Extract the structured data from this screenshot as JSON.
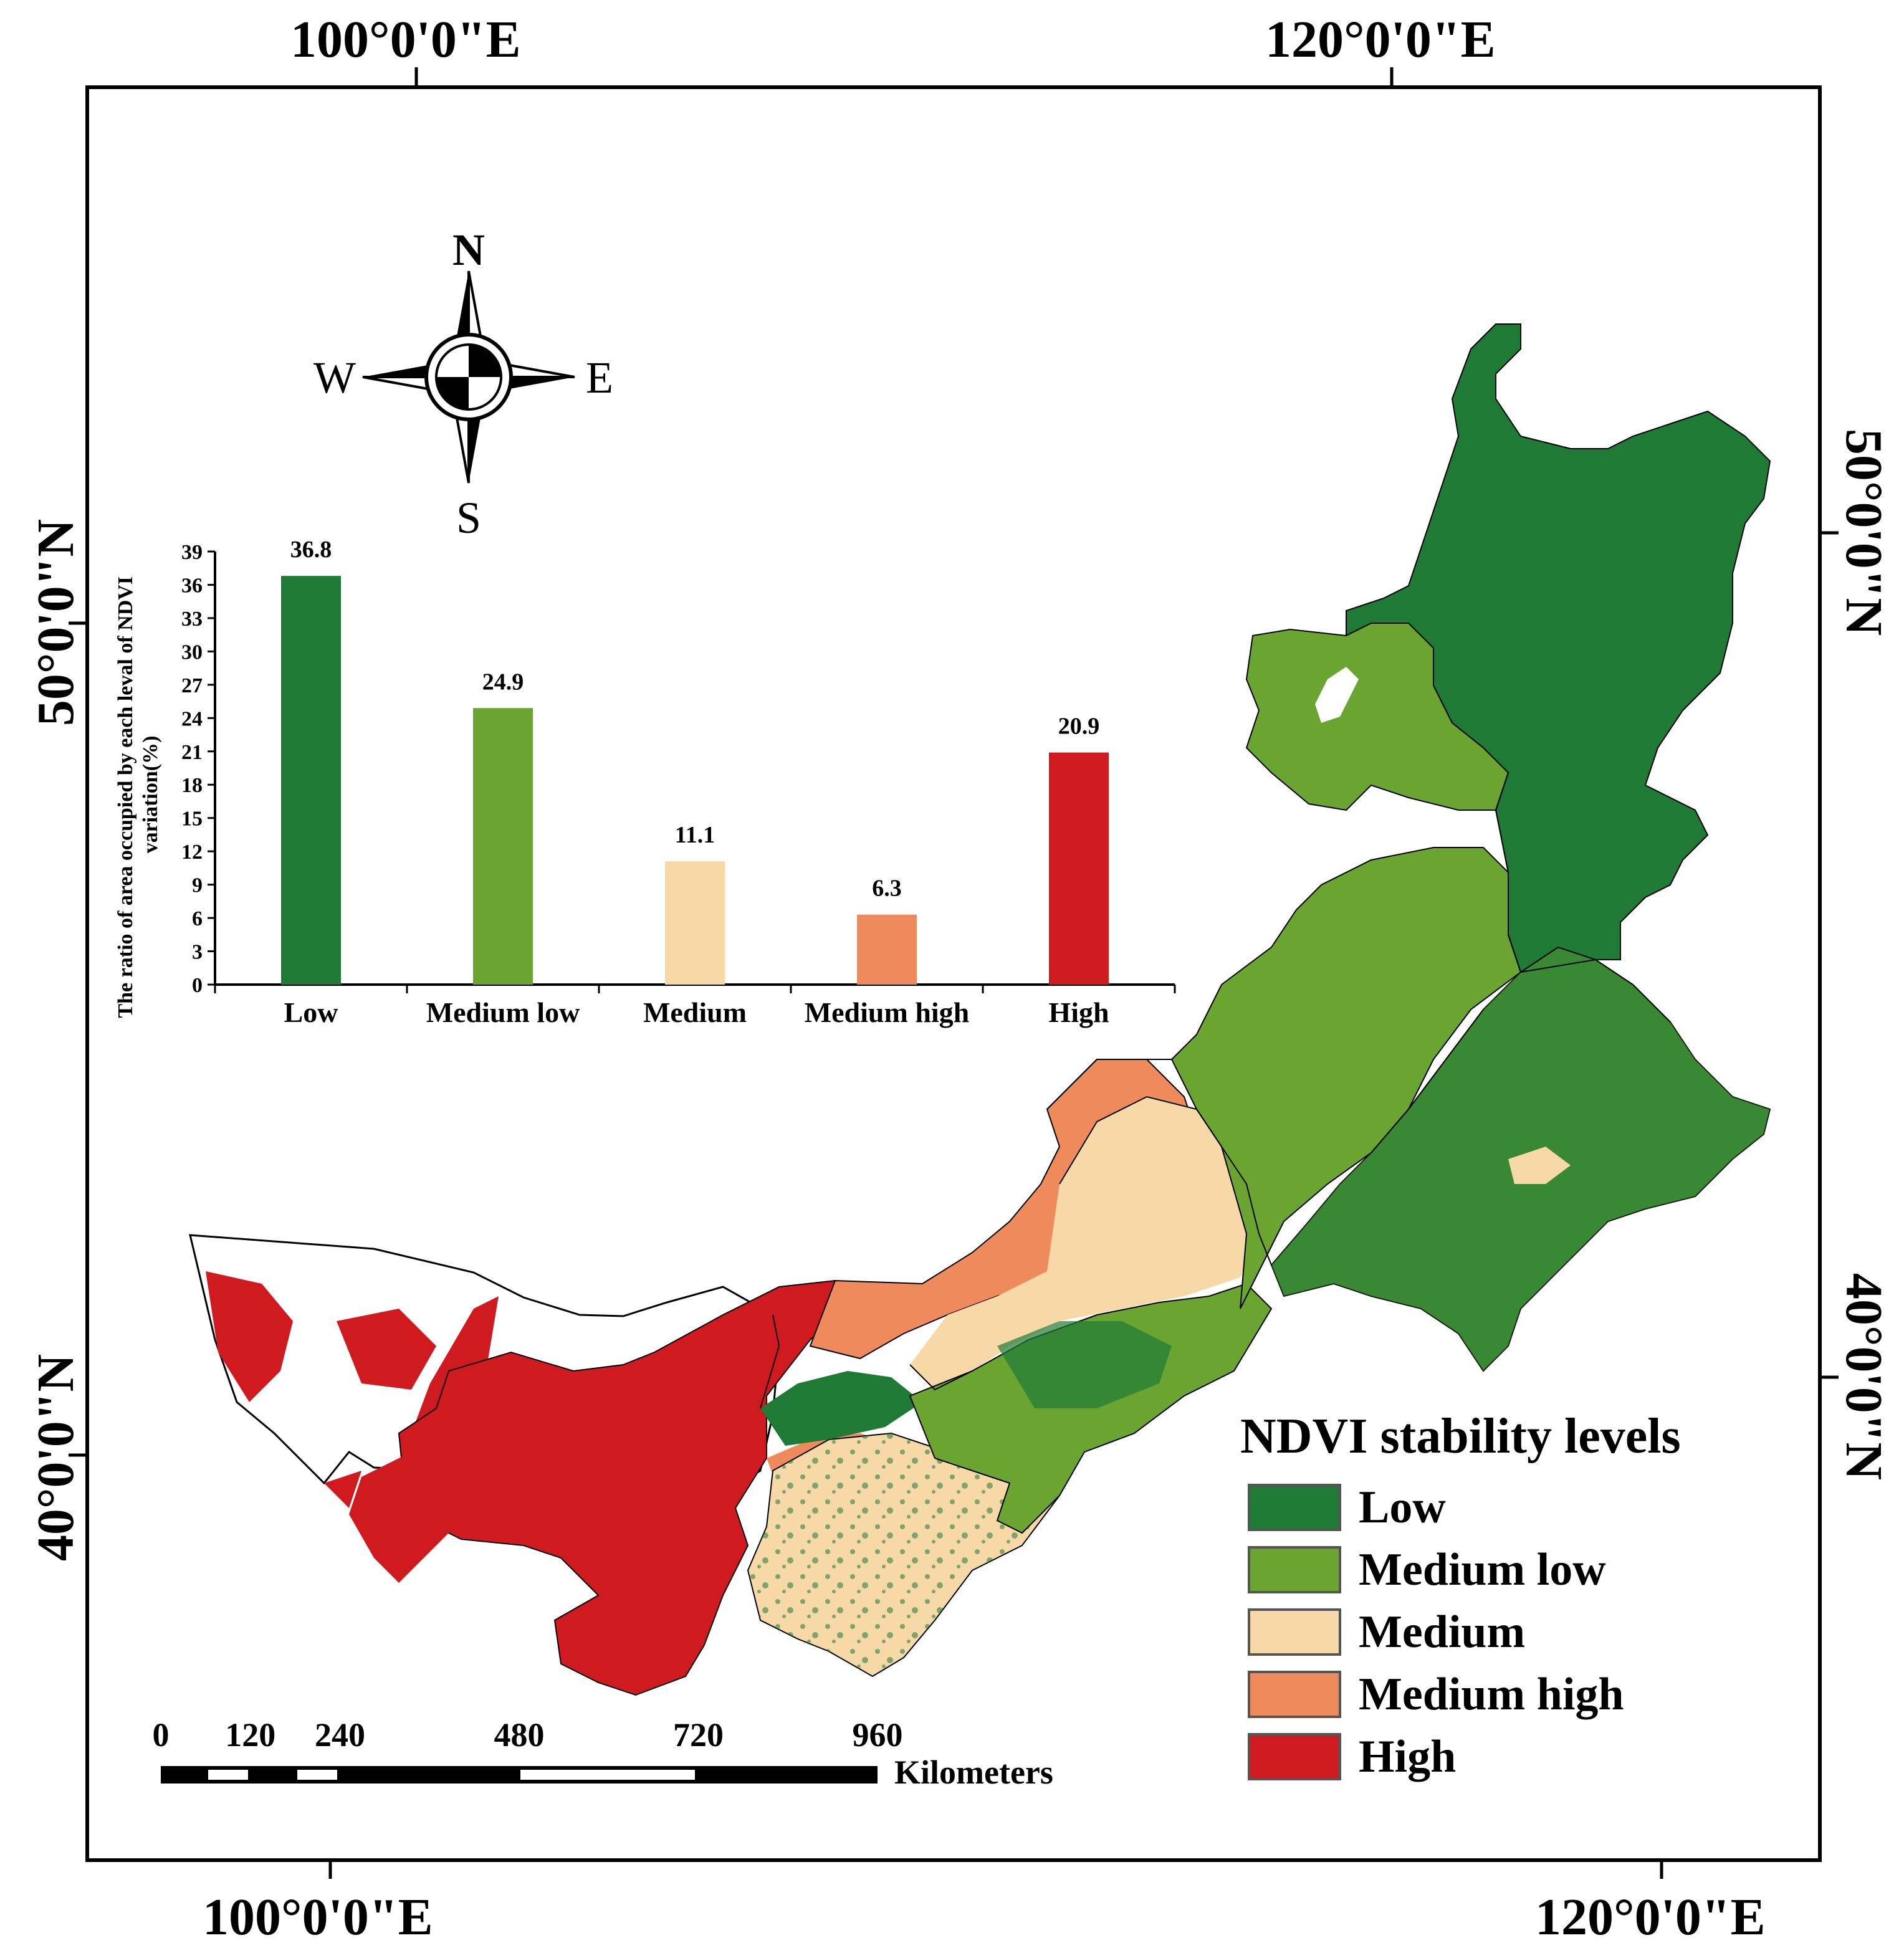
{
  "graticule": {
    "top_labels": [
      "100°0'0\"E",
      "120°0'0\"E"
    ],
    "bottom_labels": [
      "100°0'0\"E",
      "120°0'0\"E"
    ],
    "left_labels": [
      "50°0'0\"N",
      "40°0'0\"N"
    ],
    "right_labels": [
      "50°0'0\"N",
      "40°0'0\"N"
    ]
  },
  "north_arrow": {
    "n": "N",
    "s": "S",
    "e": "E",
    "w": "W"
  },
  "legend": {
    "title": "NDVI stability levels",
    "items": [
      {
        "label": "Low",
        "color": "#1f7a36"
      },
      {
        "label": "Medium low",
        "color": "#6aa532"
      },
      {
        "label": "Medium",
        "color": "#f7d8a7"
      },
      {
        "label": "Medium high",
        "color": "#ef8a5c"
      },
      {
        "label": "High",
        "color": "#cf1b20"
      }
    ]
  },
  "scale_bar": {
    "ticks": [
      "0",
      "120",
      "240",
      "480",
      "720",
      "960"
    ],
    "tick_values": [
      0,
      120,
      240,
      480,
      720,
      960
    ],
    "unit": "Kilometers"
  },
  "chart_data": {
    "type": "bar",
    "title": "",
    "categories": [
      "Low",
      "Medium low",
      "Medium",
      "Medium high",
      "High"
    ],
    "values": [
      36.8,
      24.9,
      11.1,
      6.3,
      20.9
    ],
    "value_labels": [
      "36.8",
      "24.9",
      "11.1",
      "6.3",
      "20.9"
    ],
    "colors": [
      "#1f7a36",
      "#6aa532",
      "#f7d8a7",
      "#ef8a5c",
      "#cf1b20"
    ],
    "xlabel": "",
    "ylabel": "The ratio of area occupied by each leval of NDVI variation(%)",
    "ylabel_lines": [
      "The ratio of area occupied by each leval of NDVI",
      "variation(%)"
    ],
    "ylim": [
      0,
      39
    ],
    "yticks": [
      "0",
      "3",
      "6",
      "9",
      "12",
      "15",
      "18",
      "21",
      "24",
      "27",
      "30",
      "33",
      "36",
      "39"
    ],
    "ytick_values": [
      0,
      3,
      6,
      9,
      12,
      15,
      18,
      21,
      24,
      27,
      30,
      33,
      36,
      39
    ]
  }
}
